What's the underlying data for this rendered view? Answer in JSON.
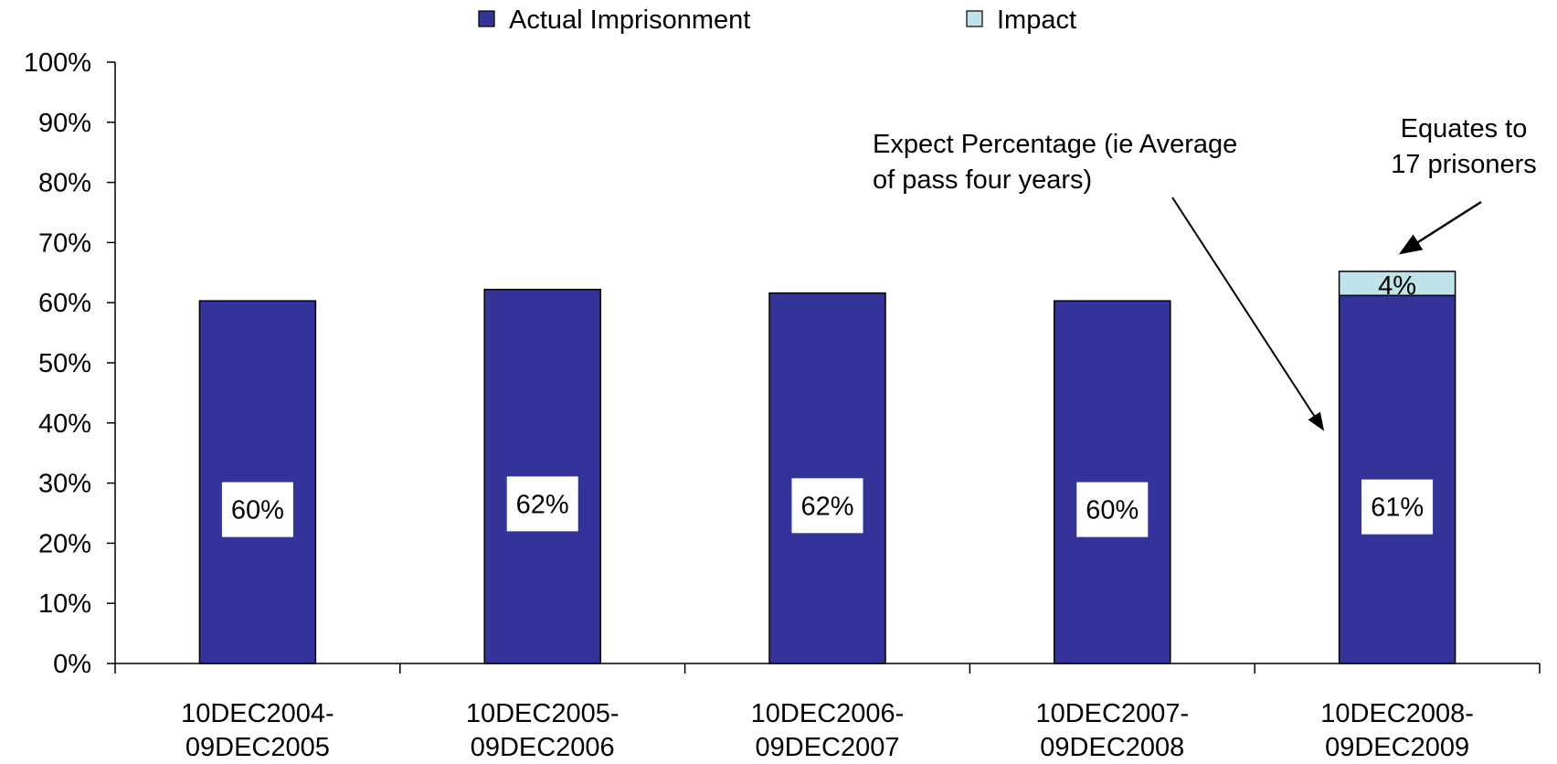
{
  "chart_data": {
    "type": "bar",
    "stacked": true,
    "categories": [
      [
        "10DEC2004-",
        "09DEC2005"
      ],
      [
        "10DEC2005-",
        "09DEC2006"
      ],
      [
        "10DEC2006-",
        "09DEC2007"
      ],
      [
        "10DEC2007-",
        "09DEC2008"
      ],
      [
        "10DEC2008-",
        "09DEC2009"
      ]
    ],
    "series": [
      {
        "name": "Actual Imprisonment",
        "color": "#333399",
        "values": [
          0.603,
          0.622,
          0.616,
          0.603,
          0.612
        ],
        "labels": [
          "60%",
          "62%",
          "62%",
          "60%",
          "61%"
        ]
      },
      {
        "name": "Impact",
        "color": "#BFE3E8",
        "values": [
          0,
          0,
          0,
          0,
          0.04
        ],
        "labels": [
          "",
          "",
          "",
          "",
          "4%"
        ]
      }
    ],
    "ylim": [
      0,
      1
    ],
    "yticks": [
      "0%",
      "10%",
      "20%",
      "30%",
      "40%",
      "50%",
      "60%",
      "70%",
      "80%",
      "90%",
      "100%"
    ],
    "grid": false,
    "legend": "top",
    "annotations": [
      {
        "lines": [
          "Expect Percentage (ie Average",
          "of pass four years)"
        ]
      },
      {
        "lines": [
          "Equates to",
          "17 prisoners"
        ]
      }
    ]
  }
}
